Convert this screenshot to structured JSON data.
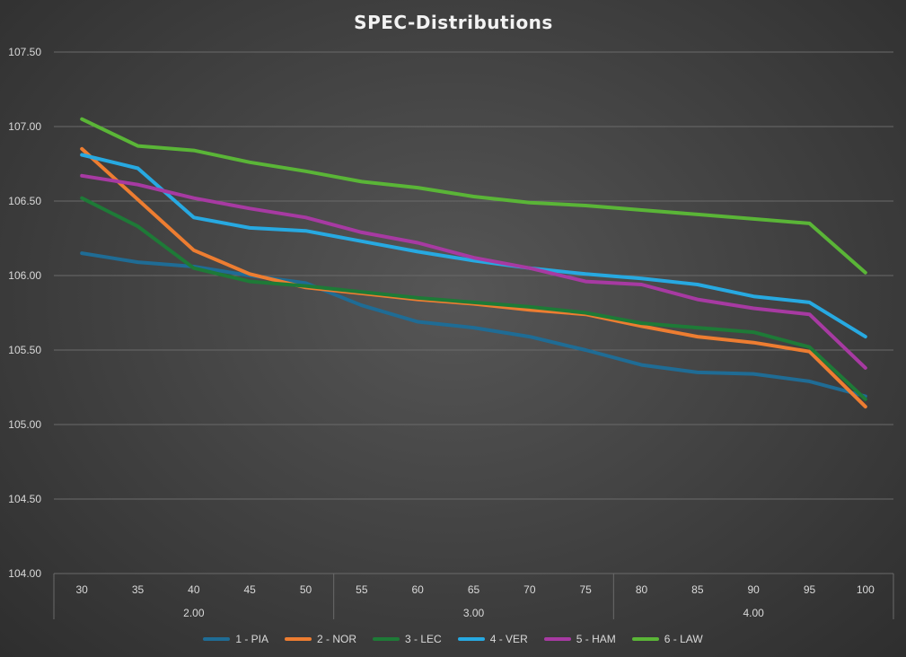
{
  "chart_data": {
    "type": "line",
    "title": "SPEC-Distributions",
    "xlabel": "",
    "ylabel": "",
    "ylim": [
      104.0,
      107.5
    ],
    "yticks": [
      "104.00",
      "104.50",
      "105.00",
      "105.50",
      "106.00",
      "106.50",
      "107.00",
      "107.50"
    ],
    "categories": [
      "30",
      "35",
      "40",
      "45",
      "50",
      "55",
      "60",
      "65",
      "70",
      "75",
      "80",
      "85",
      "90",
      "95",
      "100"
    ],
    "groups": [
      {
        "label": "2.00",
        "span": 5
      },
      {
        "label": "3.00",
        "span": 5
      },
      {
        "label": "4.00",
        "span": 5
      }
    ],
    "grid": true,
    "legend_position": "bottom",
    "series": [
      {
        "name": "1 - PIA",
        "color": "#1f6c95",
        "values": [
          106.15,
          106.09,
          106.06,
          106.0,
          105.95,
          105.8,
          105.69,
          105.65,
          105.59,
          105.5,
          105.4,
          105.35,
          105.34,
          105.29,
          105.19
        ]
      },
      {
        "name": "2 - NOR",
        "color": "#ed7d31",
        "values": [
          106.85,
          106.51,
          106.17,
          106.01,
          105.92,
          105.88,
          105.84,
          105.81,
          105.77,
          105.74,
          105.66,
          105.59,
          105.55,
          105.49,
          105.12
        ]
      },
      {
        "name": "3 - LEC",
        "color": "#1e7a37",
        "values": [
          106.52,
          106.33,
          106.05,
          105.96,
          105.93,
          105.89,
          105.85,
          105.82,
          105.79,
          105.75,
          105.68,
          105.65,
          105.62,
          105.52,
          105.17
        ]
      },
      {
        "name": "4 - VER",
        "color": "#27a9e1",
        "values": [
          106.81,
          106.72,
          106.39,
          106.32,
          106.3,
          106.23,
          106.16,
          106.1,
          106.05,
          106.01,
          105.98,
          105.94,
          105.86,
          105.82,
          105.59
        ]
      },
      {
        "name": "5 - HAM",
        "color": "#a73aa2",
        "values": [
          106.67,
          106.61,
          106.52,
          106.45,
          106.39,
          106.29,
          106.22,
          106.12,
          106.05,
          105.96,
          105.94,
          105.84,
          105.78,
          105.74,
          105.38
        ]
      },
      {
        "name": "6 - LAW",
        "color": "#5ab537",
        "values": [
          107.05,
          106.87,
          106.84,
          106.76,
          106.7,
          106.63,
          106.59,
          106.53,
          106.49,
          106.47,
          106.44,
          106.41,
          106.38,
          106.35,
          106.02
        ]
      }
    ]
  }
}
